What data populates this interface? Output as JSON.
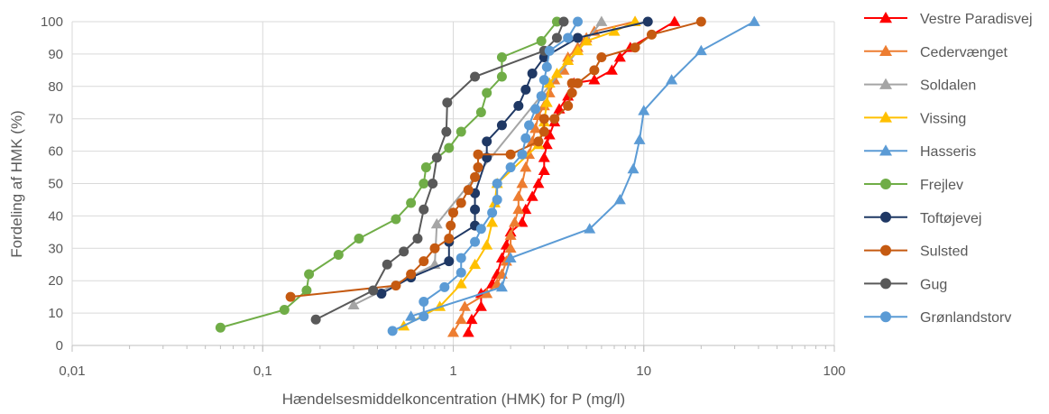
{
  "chart_data": {
    "type": "line",
    "xscale": "log",
    "xlabel": "Hændelsesmiddelkoncentration (HMK) for P (mg/l)",
    "ylabel": "Fordeling af HMK (%)",
    "xlim": [
      0.01,
      100
    ],
    "ylim": [
      0,
      100
    ],
    "xticks": [
      0.01,
      0.1,
      1,
      10,
      100
    ],
    "xtick_labels": [
      "0,01",
      "0,1",
      "1",
      "10",
      "100"
    ],
    "yticks": [
      0,
      10,
      20,
      30,
      40,
      50,
      60,
      70,
      80,
      90,
      100
    ],
    "ytick_labels": [
      "0",
      "10",
      "20",
      "30",
      "40",
      "50",
      "60",
      "70",
      "80",
      "90",
      "100"
    ],
    "grid": true,
    "legend_position": "right",
    "series": [
      {
        "name": "Vestre Paradisvej",
        "color": "#ff0000",
        "marker": "triangle",
        "x": [
          1.2,
          1.25,
          1.4,
          1.4,
          1.6,
          1.7,
          1.8,
          1.9,
          2.0,
          2.3,
          2.4,
          2.6,
          2.8,
          3.0,
          3.0,
          3.1,
          3.2,
          3.4,
          3.6,
          4.0,
          4.3,
          5.5,
          6.8,
          7.5,
          8.5,
          14.5
        ],
        "y": [
          4,
          8,
          12,
          16,
          19,
          22,
          27,
          31,
          35,
          38,
          42,
          46,
          50,
          54,
          58,
          62,
          65,
          69,
          73,
          77,
          81,
          82,
          85,
          89,
          92,
          100
        ]
      },
      {
        "name": "Cedervænget",
        "color": "#ed7d31",
        "marker": "triangle",
        "x": [
          1.0,
          1.1,
          1.15,
          1.5,
          1.7,
          1.8,
          1.9,
          2.0,
          2.0,
          2.1,
          2.2,
          2.2,
          2.3,
          2.4,
          2.5,
          2.6,
          2.7,
          2.8,
          3.0,
          3.2,
          3.4,
          3.8,
          4.0,
          4.5,
          5.0,
          5.5,
          9.0
        ],
        "y": [
          4,
          8,
          12,
          16,
          19,
          22,
          26,
          30,
          34,
          38,
          42,
          46,
          50,
          55,
          59,
          63,
          67,
          71,
          74,
          78,
          82,
          85,
          89,
          92,
          95,
          97,
          100
        ]
      },
      {
        "name": "Soldalen",
        "color": "#a5a5a5",
        "marker": "triangle",
        "x": [
          0.3,
          0.8,
          0.82,
          6.0
        ],
        "y": [
          12.5,
          25,
          37.5,
          100
        ]
      },
      {
        "name": "Vissing",
        "color": "#ffc000",
        "marker": "triangle",
        "x": [
          0.55,
          0.85,
          1.1,
          1.3,
          1.5,
          1.6,
          1.65,
          1.7,
          2.8,
          3.0,
          3.1,
          3.2,
          3.5,
          4.0,
          4.5,
          5.0,
          7.0,
          9.0
        ],
        "y": [
          6,
          12,
          19,
          25,
          31,
          38,
          44,
          50,
          62,
          69,
          75,
          81,
          84,
          88,
          91,
          94,
          97,
          100
        ]
      },
      {
        "name": "Hasseris",
        "color": "#5b9bd5",
        "marker": "triangle",
        "x": [
          0.6,
          1.8,
          2.0,
          5.2,
          7.5,
          8.8,
          9.5,
          10.0,
          14.0,
          20.0,
          38.0
        ],
        "y": [
          9,
          18,
          27,
          36,
          45,
          54.5,
          63.5,
          72.5,
          82,
          91,
          100
        ]
      },
      {
        "name": "Frejlev",
        "color": "#70ad47",
        "marker": "circle",
        "x": [
          0.06,
          0.13,
          0.17,
          0.175,
          0.25,
          0.32,
          0.5,
          0.6,
          0.7,
          0.72,
          0.95,
          1.1,
          1.4,
          1.5,
          1.8,
          1.8,
          2.9,
          3.5
        ],
        "y": [
          5.5,
          11,
          17,
          22,
          28,
          33,
          39,
          44,
          50,
          55,
          61,
          66,
          72,
          78,
          83,
          89,
          94,
          100
        ]
      },
      {
        "name": "Toftøjevej",
        "color": "#1f3864",
        "marker": "circle",
        "x": [
          0.42,
          0.6,
          0.95,
          0.95,
          1.3,
          1.3,
          1.3,
          1.5,
          1.5,
          1.8,
          2.2,
          2.4,
          2.6,
          3.0,
          4.5,
          10.5
        ],
        "y": [
          16,
          21,
          26,
          32,
          37,
          42,
          47,
          58,
          63,
          68,
          74,
          79,
          84,
          89,
          95,
          100
        ]
      },
      {
        "name": "Sulsted",
        "color": "#c55a11",
        "marker": "circle",
        "x": [
          0.14,
          0.5,
          0.6,
          0.7,
          0.8,
          0.95,
          0.97,
          1.0,
          1.1,
          1.2,
          1.3,
          1.35,
          1.35,
          2.0,
          2.8,
          3.0,
          3.0,
          3.4,
          4.0,
          4.2,
          4.2,
          4.5,
          5.5,
          6.0,
          9.0,
          11.0,
          20.0
        ],
        "y": [
          15,
          18.5,
          22,
          26,
          30,
          33,
          37,
          41,
          44,
          48,
          52,
          55,
          59,
          59,
          63,
          66,
          70,
          70,
          74,
          78,
          81,
          81,
          85,
          89,
          92,
          96,
          100
        ]
      },
      {
        "name": "Gug",
        "color": "#595959",
        "marker": "circle",
        "x": [
          0.19,
          0.38,
          0.45,
          0.55,
          0.65,
          0.7,
          0.78,
          0.82,
          0.92,
          0.93,
          1.3,
          3.0,
          3.5,
          3.8
        ],
        "y": [
          8,
          17,
          25,
          29,
          33,
          42,
          50,
          58,
          66,
          75,
          83,
          91,
          95,
          100
        ]
      },
      {
        "name": "Grønlandstorv",
        "color": "#5b9bd5",
        "marker": "circle",
        "x": [
          0.48,
          0.7,
          0.7,
          0.9,
          1.1,
          1.1,
          1.3,
          1.4,
          1.6,
          1.7,
          1.7,
          2.0,
          2.3,
          2.4,
          2.5,
          2.7,
          2.9,
          3.0,
          3.1,
          3.2,
          4.0,
          4.5
        ],
        "y": [
          4.5,
          9,
          13.5,
          18,
          22.5,
          27,
          32,
          36,
          41,
          45,
          50,
          55,
          59,
          64,
          68,
          73,
          77,
          82,
          86,
          91,
          95,
          100
        ]
      }
    ]
  }
}
